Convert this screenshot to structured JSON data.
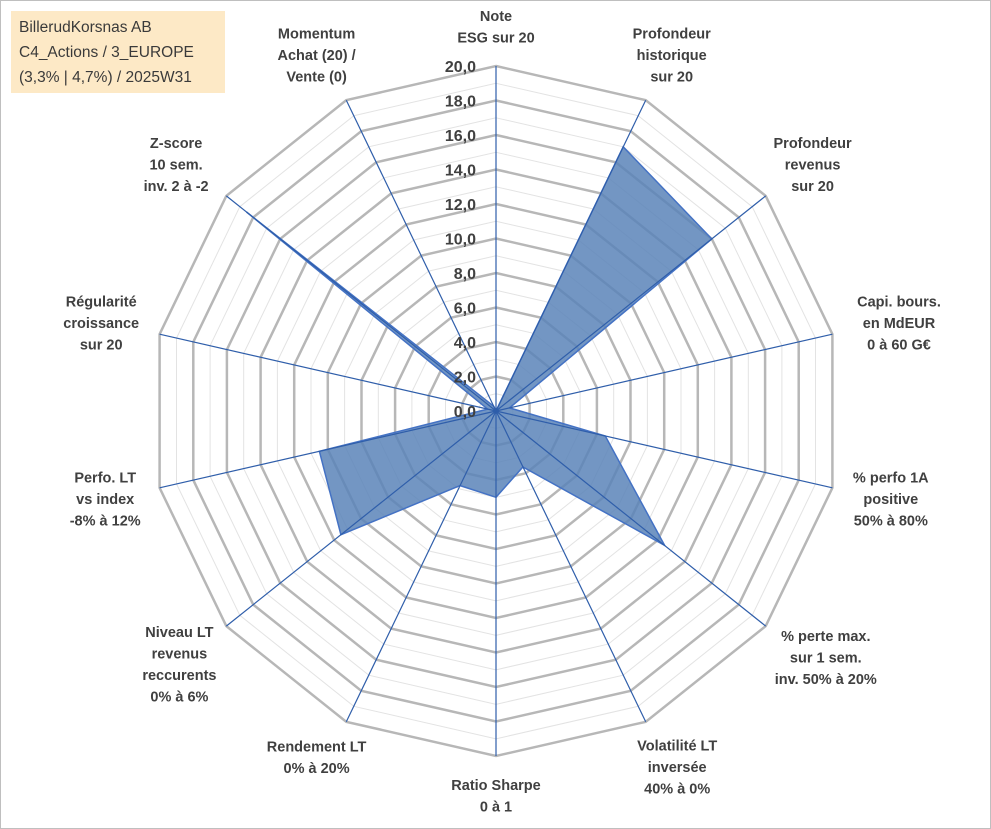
{
  "title_box": {
    "lines": [
      "BillerudKorsnas AB",
      "C4_Actions / 3_EUROPE",
      "(3,3% | 4,7%) / 2025W31"
    ]
  },
  "colors": {
    "fill": "#5b84b8",
    "stroke": "#4472c4",
    "spoke": "#2f5eaa",
    "grid_major": "#b7b7b7",
    "grid_minor": "#e3e3e3",
    "title_bg": "#fde9c6"
  },
  "chart_data": {
    "type": "radar",
    "rmin": 0,
    "rmax": 20,
    "tick_step": 2,
    "minor_step": 1,
    "tick_labels": [
      "0,0",
      "2,0",
      "4,0",
      "6,0",
      "8,0",
      "10,0",
      "12,0",
      "14,0",
      "16,0",
      "18,0",
      "20,0"
    ],
    "grid": true,
    "axes": [
      {
        "label": [
          "Note",
          "ESG sur 20"
        ],
        "value": 0
      },
      {
        "label": [
          "Profondeur",
          "historique",
          "sur 20"
        ],
        "value": 17
      },
      {
        "label": [
          "Profondeur",
          "revenus",
          "sur 20"
        ],
        "value": 16
      },
      {
        "label": [
          "Capi. bours.",
          "en MdEUR",
          "0 à 60 G€"
        ],
        "value": 0.8
      },
      {
        "label": [
          "% perfo 1A",
          "positive",
          "50% à 80%"
        ],
        "value": 6.5
      },
      {
        "label": [
          "% perte max.",
          "sur 1 sem.",
          "inv. 50% à 20%"
        ],
        "value": 12.5
      },
      {
        "label": [
          "Volatilité LT",
          "inversée",
          "40% à 0%"
        ],
        "value": 3.6
      },
      {
        "label": [
          "Ratio Sharpe",
          "0 à 1"
        ],
        "value": 5
      },
      {
        "label": [
          "Rendement LT",
          "0% à 20%"
        ],
        "value": 4.8
      },
      {
        "label": [
          "Niveau LT",
          "revenus",
          "reccurents",
          "0% à 6%"
        ],
        "value": 11.5
      },
      {
        "label": [
          "Perfo. LT",
          "vs index",
          "-8% à 12%"
        ],
        "value": 10.5
      },
      {
        "label": [
          "Régularité",
          "croissance",
          "sur 20"
        ],
        "value": 0.5
      },
      {
        "label": [
          "Z-score",
          "10 sem.",
          "inv. 2 à -2"
        ],
        "value": 18.5
      },
      {
        "label": [
          "Momentum",
          "Achat (20) /",
          "Vente (0)"
        ],
        "value": 0.3
      }
    ]
  }
}
